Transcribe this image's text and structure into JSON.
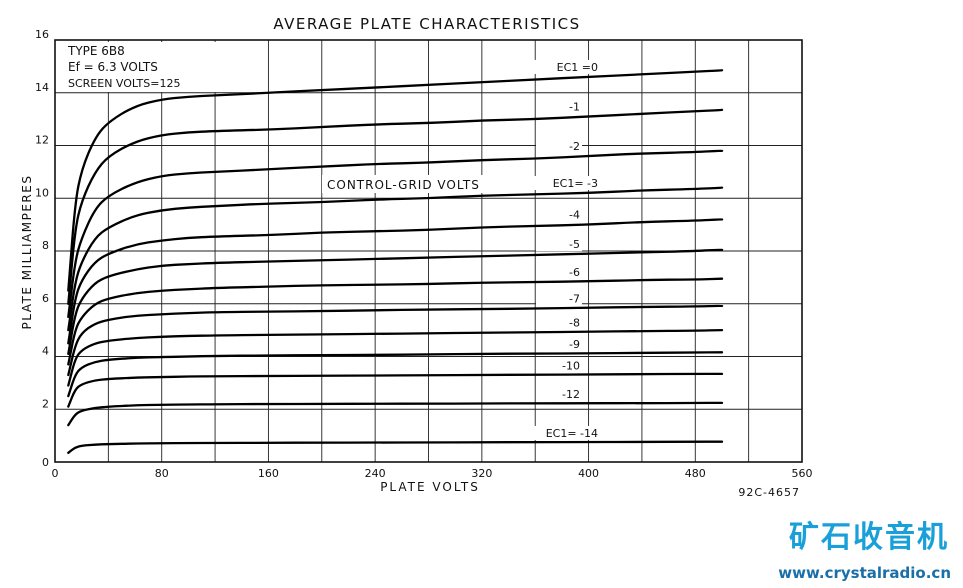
{
  "chart_data": {
    "type": "line",
    "title": "AVERAGE PLATE CHARACTERISTICS",
    "xlabel": "PLATE VOLTS",
    "ylabel": "PLATE MILLIAMPERES",
    "xlim": [
      0,
      560
    ],
    "ylim": [
      0,
      16
    ],
    "x_ticks": [
      "0",
      "80",
      "160",
      "240",
      "320",
      "400",
      "480",
      "560"
    ],
    "y_ticks": [
      "0",
      "2",
      "4",
      "6",
      "8",
      "10",
      "12",
      "14",
      "16"
    ],
    "grid": true,
    "info_lines": [
      "TYPE 6B8",
      "Ef = 6.3 VOLTS",
      "SCREEN VOLTS=125"
    ],
    "family_label": "CONTROL-GRID VOLTS",
    "code": "92C-4657",
    "x": [
      10,
      15,
      20,
      30,
      40,
      60,
      80,
      100,
      120,
      160,
      200,
      240,
      280,
      320,
      360,
      400,
      440,
      480,
      500
    ],
    "series": [
      {
        "label": "EC1 =0",
        "values": [
          6.5,
          9.8,
          11.1,
          12.3,
          12.9,
          13.5,
          13.75,
          13.85,
          13.9,
          14.0,
          14.1,
          14.2,
          14.3,
          14.4,
          14.5,
          14.6,
          14.7,
          14.8,
          14.85
        ]
      },
      {
        "label": "-1",
        "values": [
          6.0,
          8.8,
          9.9,
          11.0,
          11.6,
          12.15,
          12.4,
          12.5,
          12.55,
          12.6,
          12.7,
          12.8,
          12.85,
          12.95,
          13.0,
          13.1,
          13.2,
          13.3,
          13.35
        ]
      },
      {
        "label": "-2",
        "values": [
          5.5,
          7.6,
          8.5,
          9.6,
          10.1,
          10.6,
          10.85,
          10.95,
          11.0,
          11.1,
          11.2,
          11.3,
          11.35,
          11.45,
          11.5,
          11.6,
          11.7,
          11.75,
          11.8
        ]
      },
      {
        "label": "EC1= -3",
        "values": [
          5.0,
          6.8,
          7.6,
          8.5,
          8.9,
          9.35,
          9.55,
          9.65,
          9.7,
          9.8,
          9.85,
          9.95,
          10.0,
          10.1,
          10.15,
          10.2,
          10.3,
          10.35,
          10.4
        ]
      },
      {
        "label": "-4",
        "values": [
          4.5,
          6.2,
          6.9,
          7.6,
          7.9,
          8.25,
          8.4,
          8.5,
          8.55,
          8.6,
          8.7,
          8.75,
          8.8,
          8.9,
          8.95,
          9.0,
          9.1,
          9.15,
          9.2
        ]
      },
      {
        "label": "-5",
        "values": [
          4.1,
          5.6,
          6.2,
          6.8,
          7.05,
          7.3,
          7.45,
          7.5,
          7.55,
          7.6,
          7.65,
          7.7,
          7.75,
          7.8,
          7.85,
          7.9,
          7.95,
          8.0,
          8.05
        ]
      },
      {
        "label": "-6",
        "values": [
          3.7,
          5.0,
          5.5,
          6.0,
          6.2,
          6.4,
          6.5,
          6.55,
          6.6,
          6.65,
          6.7,
          6.72,
          6.75,
          6.8,
          6.82,
          6.85,
          6.9,
          6.92,
          6.95
        ]
      },
      {
        "label": "-7",
        "values": [
          3.3,
          4.4,
          4.9,
          5.25,
          5.4,
          5.55,
          5.6,
          5.65,
          5.68,
          5.7,
          5.72,
          5.75,
          5.78,
          5.8,
          5.82,
          5.85,
          5.88,
          5.9,
          5.92
        ]
      },
      {
        "label": "-8",
        "values": [
          2.9,
          3.9,
          4.25,
          4.5,
          4.6,
          4.7,
          4.75,
          4.78,
          4.8,
          4.82,
          4.84,
          4.86,
          4.88,
          4.9,
          4.92,
          4.94,
          4.96,
          4.98,
          5.0
        ]
      },
      {
        "label": "-9",
        "values": [
          2.5,
          3.3,
          3.6,
          3.8,
          3.88,
          3.95,
          3.98,
          4.0,
          4.02,
          4.04,
          4.05,
          4.06,
          4.08,
          4.1,
          4.11,
          4.12,
          4.14,
          4.15,
          4.16
        ]
      },
      {
        "label": "-10",
        "values": [
          2.1,
          2.75,
          2.95,
          3.1,
          3.15,
          3.2,
          3.22,
          3.24,
          3.25,
          3.26,
          3.27,
          3.28,
          3.29,
          3.3,
          3.31,
          3.32,
          3.33,
          3.34,
          3.34
        ]
      },
      {
        "label": "-12",
        "values": [
          1.4,
          1.8,
          1.95,
          2.05,
          2.1,
          2.15,
          2.17,
          2.18,
          2.19,
          2.2,
          2.2,
          2.21,
          2.21,
          2.22,
          2.22,
          2.23,
          2.23,
          2.24,
          2.24
        ]
      },
      {
        "label": "EC1= -14",
        "values": [
          0.35,
          0.55,
          0.62,
          0.66,
          0.68,
          0.7,
          0.71,
          0.72,
          0.72,
          0.73,
          0.73,
          0.74,
          0.74,
          0.75,
          0.75,
          0.76,
          0.76,
          0.77,
          0.77
        ]
      }
    ]
  },
  "watermark": {
    "cn": "矿石收音机",
    "url": "www.crystalradio.cn",
    "color": "#1aa0d8"
  }
}
